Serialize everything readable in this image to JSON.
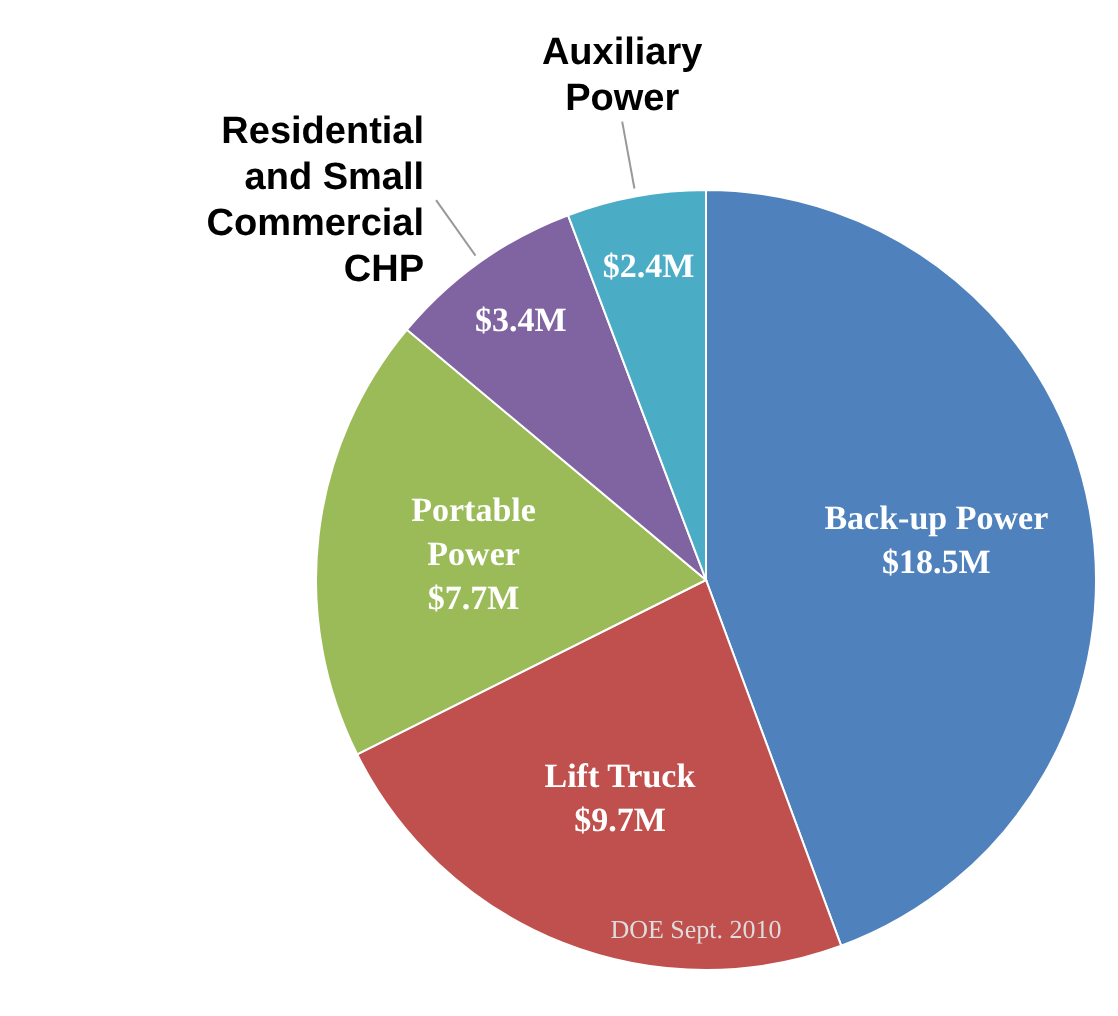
{
  "chart_data": {
    "type": "pie",
    "categories": [
      "Back-up Power",
      "Lift Truck",
      "Portable Power",
      "Residential and Small Commercial CHP",
      "Auxiliary Power"
    ],
    "values": [
      18.5,
      9.7,
      7.7,
      3.4,
      2.4
    ],
    "value_labels": [
      "$18.5M",
      "$9.7M",
      "$7.7M",
      "$3.4M",
      "$2.4M"
    ],
    "colors": [
      "#4f81bd",
      "#c0504d",
      "#9bbb59",
      "#8064a2",
      "#4bacc6"
    ],
    "annotations": [
      "DOE Sept. 2010"
    ]
  }
}
